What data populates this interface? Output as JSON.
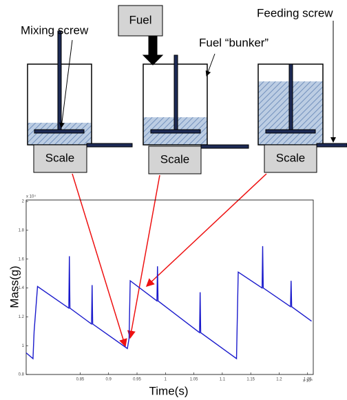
{
  "diagram": {
    "mixing_screw": "Mixing screw",
    "fuel": "Fuel",
    "bunker": "Fuel “bunker”",
    "feeding_screw": "Feeding screw",
    "scales": [
      "Scale",
      "Scale",
      "Scale"
    ]
  },
  "chart_data": {
    "type": "line",
    "y_label": "Mass(g)",
    "x_label": "Time(s)",
    "y_multiplier": "x 10⁴",
    "x_multiplier": "x 10⁴",
    "xlim": [
      0.755,
      1.26
    ],
    "ylim": [
      0.8,
      2.01
    ],
    "xticks": [
      0.85,
      0.9,
      0.95,
      1,
      1.05,
      1.1,
      1.15,
      1.2,
      1.25
    ],
    "yticks": [
      0.8,
      1,
      1.2,
      1.4,
      1.6,
      1.8,
      2
    ],
    "series": [
      {
        "color": "#1a1acc",
        "x": [
          0.755,
          0.767,
          0.769,
          0.775,
          0.83,
          0.831,
          0.832,
          0.87,
          0.871,
          0.872,
          0.933,
          0.936,
          0.938,
          0.985,
          0.986,
          0.987,
          1.06,
          1.061,
          1.062,
          1.125,
          1.128,
          1.17,
          1.171,
          1.172,
          1.22,
          1.221,
          1.222,
          1.257
        ],
        "values": [
          0.95,
          0.91,
          1.1,
          1.41,
          1.26,
          1.62,
          1.26,
          1.15,
          1.42,
          1.15,
          0.98,
          1.05,
          1.45,
          1.31,
          1.55,
          1.31,
          1.09,
          1.37,
          1.09,
          0.91,
          1.51,
          1.4,
          1.69,
          1.4,
          1.27,
          1.45,
          1.27,
          1.17
        ]
      }
    ]
  }
}
